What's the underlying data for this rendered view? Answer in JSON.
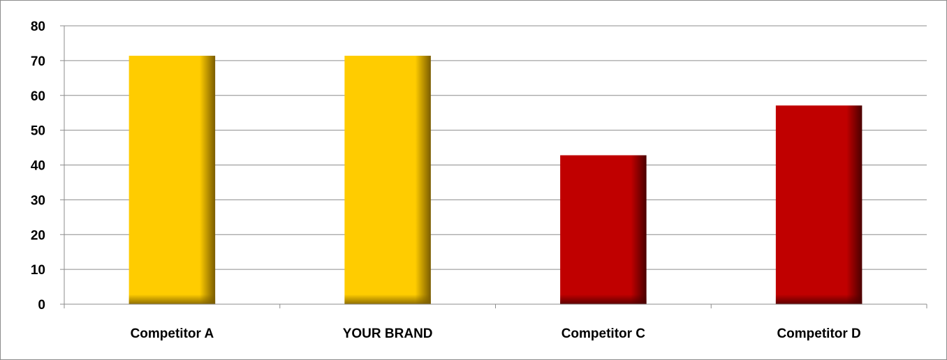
{
  "chart_data": {
    "type": "bar",
    "title": "",
    "xlabel": "",
    "ylabel": "",
    "categories": [
      "Competitor A",
      "YOUR BRAND",
      "Competitor C",
      "Competitor D"
    ],
    "values": [
      71.4,
      71.4,
      42.8,
      57.1
    ],
    "ylim": [
      0,
      80
    ],
    "yticks": [
      "0",
      "10",
      "20",
      "30",
      "40",
      "50",
      "60",
      "70",
      "80"
    ],
    "grid": true,
    "legend": "none",
    "bar_colors": [
      "#ffcc00",
      "#ffcc00",
      "#c00000",
      "#c00000"
    ],
    "bar_shade_colors": [
      "#7a5c00",
      "#7a5c00",
      "#4a0000",
      "#4a0000"
    ],
    "gridline_color": "#8c8c8c"
  }
}
